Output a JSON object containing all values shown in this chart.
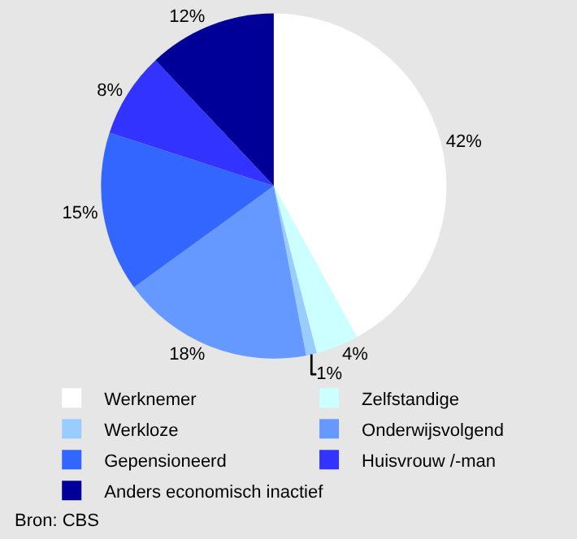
{
  "chart_data": {
    "type": "pie",
    "categories": [
      "Werknemer",
      "Zelfstandige",
      "Werkloze",
      "Onderwijsvolgend",
      "Gepensioneerd",
      "Huisvrouw /-man",
      "Anders economisch inactief"
    ],
    "values": [
      42,
      4,
      1,
      18,
      15,
      8,
      12
    ],
    "colors": [
      "#ffffff",
      "#ccffff",
      "#99ccff",
      "#6699ff",
      "#3366ff",
      "#3333ff",
      "#000099"
    ],
    "value_labels": [
      "42%",
      "4%",
      "1%",
      "18%",
      "15%",
      "8%",
      "12%"
    ],
    "legend": "bottom",
    "annotations": [
      "Bron: CBS"
    ]
  }
}
